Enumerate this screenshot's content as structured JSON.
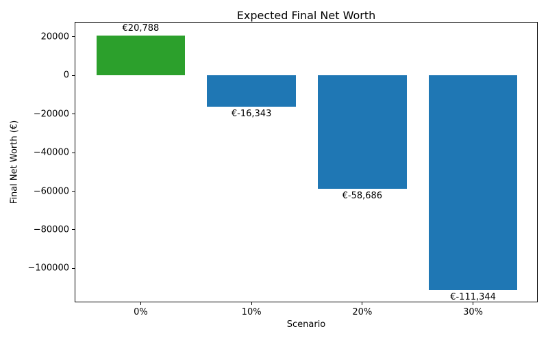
{
  "chart_data": {
    "type": "bar",
    "title": "Expected Final Net Worth",
    "xlabel": "Scenario",
    "ylabel": "Final Net Worth (€)",
    "categories": [
      "0%",
      "10%",
      "20%",
      "30%"
    ],
    "values": [
      20788,
      -16343,
      -58686,
      -111344
    ],
    "bar_labels": [
      "€20,788",
      "€-16,343",
      "€-58,686",
      "€-111,344"
    ],
    "bar_colors": [
      "#2ca02c",
      "#1f77b4",
      "#1f77b4",
      "#1f77b4"
    ],
    "positive_color": "#2ca02c",
    "negative_color": "#1f77b4",
    "yticks": [
      20000,
      0,
      -20000,
      -40000,
      -60000,
      -80000,
      -100000
    ],
    "ytick_labels": [
      "20000",
      "0",
      "−20000",
      "−40000",
      "−60000",
      "−80000",
      "−100000"
    ],
    "ylim": [
      -117951,
      27395
    ],
    "xlim": [
      -0.59,
      3.59
    ],
    "bar_width": 0.8,
    "grid": false,
    "legend_position": "none"
  }
}
